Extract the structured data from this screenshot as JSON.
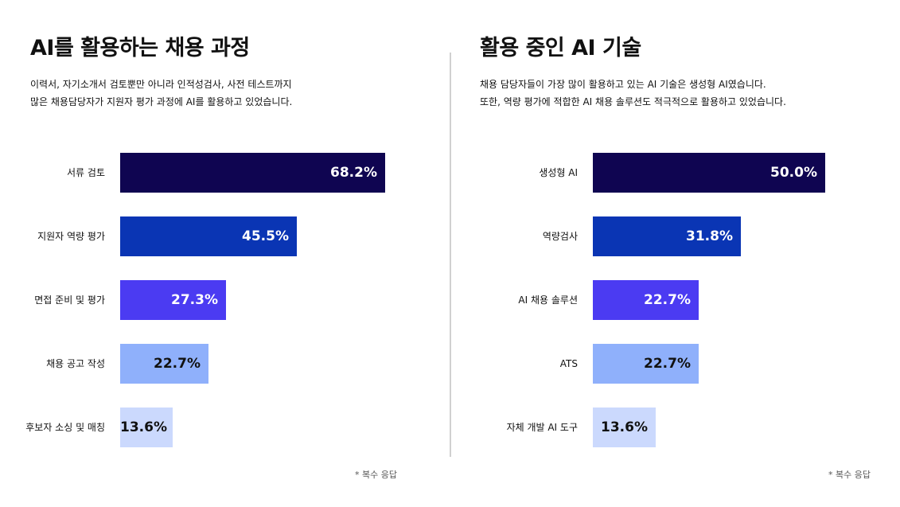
{
  "chart_data": [
    {
      "type": "bar",
      "orientation": "horizontal",
      "title": "AI를 활용하는 채용 과정",
      "subtitle_lines": [
        "이력서, 자기소개서 검토뿐만 아니라 인적성검사, 사전 테스트까지",
        "많은 채용담당자가 지원자 평가 과정에 AI를 활용하고 있었습니다."
      ],
      "categories": [
        "서류 검토",
        "지원자 역량 평가",
        "면접 준비 및 평가",
        "채용 공고 작성",
        "후보자 소싱 및 매칭"
      ],
      "values": [
        68.2,
        45.5,
        27.3,
        22.7,
        13.6
      ],
      "value_labels": [
        "68.2%",
        "45.5%",
        "27.3%",
        "22.7%",
        "13.6%"
      ],
      "unit": "%",
      "xlim": [
        0,
        100
      ],
      "bar_colors": [
        "#0f0551",
        "#0a35b4",
        "#4b3bf2",
        "#8fb0fb",
        "#cbd9fd"
      ],
      "label_colors": [
        "#ffffff",
        "#ffffff",
        "#ffffff",
        "#111111",
        "#111111"
      ],
      "footnote": "* 복수 응답"
    },
    {
      "type": "bar",
      "orientation": "horizontal",
      "title": "활용 중인 AI 기술",
      "subtitle_lines": [
        "채용 담당자들이 가장 많이 활용하고 있는 AI 기술은 생성형 AI였습니다.",
        "또한, 역량 평가에 적합한 AI 채용 솔루션도 적극적으로 활용하고 있었습니다."
      ],
      "categories": [
        "생성형 AI",
        "역량검사",
        "AI 채용 솔루션",
        "ATS",
        "자체 개발 AI 도구"
      ],
      "values": [
        50.0,
        31.8,
        22.7,
        22.7,
        13.6
      ],
      "value_labels": [
        "50.0%",
        "31.8%",
        "22.7%",
        "22.7%",
        "13.6%"
      ],
      "unit": "%",
      "xlim": [
        0,
        73.3
      ],
      "bar_colors": [
        "#0f0551",
        "#0a35b4",
        "#4b3bf2",
        "#8fb0fb",
        "#cbd9fd"
      ],
      "label_colors": [
        "#ffffff",
        "#ffffff",
        "#ffffff",
        "#111111",
        "#111111"
      ],
      "footnote": "* 복수 응답"
    }
  ]
}
